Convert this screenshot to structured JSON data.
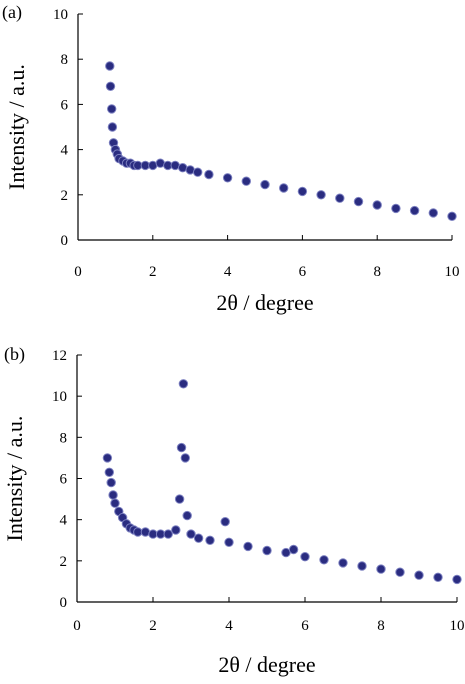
{
  "chart_data": [
    {
      "type": "scatter",
      "panel_label": "(a)",
      "xlabel": "2θ / degree",
      "ylabel": "Intensity / a.u.",
      "xlim": [
        0,
        10
      ],
      "ylim": [
        0,
        10
      ],
      "xticks": [
        "0",
        "2",
        "4",
        "6",
        "8",
        "10"
      ],
      "yticks": [
        "0",
        "2",
        "4",
        "6",
        "8",
        "10"
      ],
      "grid": false,
      "marker_color": "#2a2c80",
      "marker_edge": "#7c80c0",
      "series": [
        {
          "x": [
            0.85,
            0.87,
            0.9,
            0.92,
            0.95,
            1.0,
            1.05,
            1.1,
            1.2,
            1.3,
            1.4,
            1.5,
            1.6,
            1.8,
            2.0,
            2.2,
            2.4,
            2.6,
            2.8,
            3.0,
            3.2,
            3.5,
            4.0,
            4.5,
            5.0,
            5.5,
            6.0,
            6.5,
            7.0,
            7.5,
            8.0,
            8.5,
            9.0,
            9.5,
            10.0
          ],
          "y": [
            7.7,
            6.8,
            5.8,
            5.0,
            4.3,
            4.0,
            3.8,
            3.6,
            3.5,
            3.4,
            3.4,
            3.3,
            3.3,
            3.3,
            3.3,
            3.4,
            3.3,
            3.3,
            3.2,
            3.1,
            3.0,
            2.9,
            2.75,
            2.6,
            2.45,
            2.3,
            2.15,
            2.0,
            1.85,
            1.7,
            1.55,
            1.4,
            1.3,
            1.2,
            1.05
          ]
        }
      ]
    },
    {
      "type": "scatter",
      "panel_label": "(b)",
      "xlabel": "2θ / degree",
      "ylabel": "Intensity / a.u.",
      "xlim": [
        0,
        10
      ],
      "ylim": [
        0,
        12
      ],
      "xticks": [
        "0",
        "2",
        "4",
        "6",
        "8",
        "10"
      ],
      "yticks": [
        "0",
        "2",
        "4",
        "6",
        "8",
        "10",
        "12"
      ],
      "grid": false,
      "marker_color": "#2a2c80",
      "marker_edge": "#7c80c0",
      "series": [
        {
          "x": [
            0.8,
            0.85,
            0.9,
            0.95,
            1.0,
            1.1,
            1.2,
            1.3,
            1.4,
            1.5,
            1.6,
            1.8,
            2.0,
            2.2,
            2.4,
            2.6,
            2.7,
            2.75,
            2.8,
            2.85,
            2.9,
            3.0,
            3.2,
            3.5,
            3.9,
            4.0,
            4.5,
            5.0,
            5.5,
            5.7,
            6.0,
            6.5,
            7.0,
            7.5,
            8.0,
            8.5,
            9.0,
            9.5,
            10.0
          ],
          "y": [
            7.0,
            6.3,
            5.8,
            5.2,
            4.8,
            4.4,
            4.1,
            3.8,
            3.6,
            3.5,
            3.4,
            3.4,
            3.3,
            3.3,
            3.3,
            3.5,
            5.0,
            7.5,
            10.6,
            7.0,
            4.2,
            3.3,
            3.1,
            3.0,
            3.9,
            2.9,
            2.7,
            2.5,
            2.4,
            2.55,
            2.2,
            2.05,
            1.9,
            1.75,
            1.6,
            1.45,
            1.3,
            1.2,
            1.1
          ]
        }
      ]
    }
  ]
}
